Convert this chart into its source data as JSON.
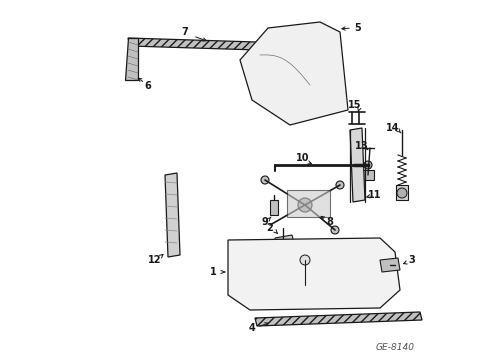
{
  "bg_color": "#ffffff",
  "fg_color": "#1a1a1a",
  "diagram_id": "GE-8140",
  "label_fs": 7,
  "lw": 0.9
}
